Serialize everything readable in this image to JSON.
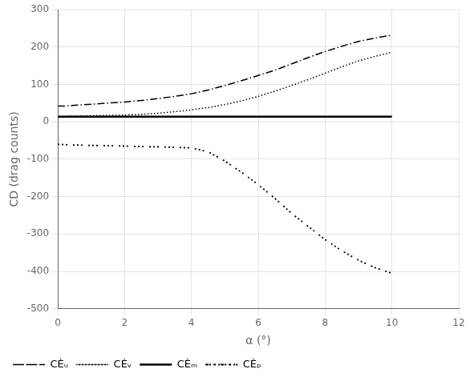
{
  "chart_data": {
    "type": "line",
    "x_label": "α (°)",
    "y_label": "CD (drag counts)",
    "x": [
      0.0,
      0.2,
      0.4,
      0.5,
      1.0,
      1.5,
      2.0,
      2.5,
      3.0,
      3.5,
      4.0,
      4.5,
      5.0,
      5.5,
      6.0,
      6.5,
      7.0,
      7.5,
      8.0,
      8.5,
      9.0,
      9.5,
      10.0
    ],
    "series": [
      {
        "name": "CĖᵤ",
        "color": "black",
        "line_style": "dashdot",
        "values": [
          42,
          42,
          43,
          44,
          47,
          50,
          53,
          57,
          62,
          68,
          75,
          85,
          97,
          110,
          124,
          138,
          155,
          172,
          188,
          202,
          215,
          224,
          232
        ]
      },
      {
        "name": "CĖᵥ",
        "color": "black",
        "line_style": "dotted",
        "values": [
          14,
          14,
          15,
          15,
          16,
          17,
          18,
          20,
          23,
          27,
          32,
          38,
          46,
          56,
          68,
          82,
          97,
          113,
          130,
          147,
          163,
          175,
          186
        ]
      },
      {
        "name": "CĖₘ",
        "color": "black",
        "line_style": "solid",
        "values": [
          14,
          14,
          14,
          14,
          14,
          14,
          14,
          14,
          14,
          14,
          14,
          14,
          14,
          14,
          14,
          14,
          14,
          14,
          14,
          14,
          14,
          14,
          14
        ]
      },
      {
        "name": "CĖₚ",
        "color": "black",
        "line_style": "dotgroups",
        "values": [
          -60,
          -61,
          -62,
          -62,
          -63,
          -64,
          -65,
          -66,
          -67,
          -68,
          -70,
          -80,
          -105,
          -135,
          -168,
          -205,
          -245,
          -280,
          -315,
          -345,
          -370,
          -390,
          -405
        ]
      }
    ],
    "xlim": [
      0,
      12
    ],
    "ylim": [
      -500,
      300
    ],
    "xticks": [
      0,
      2,
      4,
      6,
      8,
      10,
      12
    ],
    "yticks": [
      -500,
      -400,
      -300,
      -200,
      -100,
      0,
      100,
      200,
      300
    ],
    "grid": true,
    "legend": "lower left"
  }
}
